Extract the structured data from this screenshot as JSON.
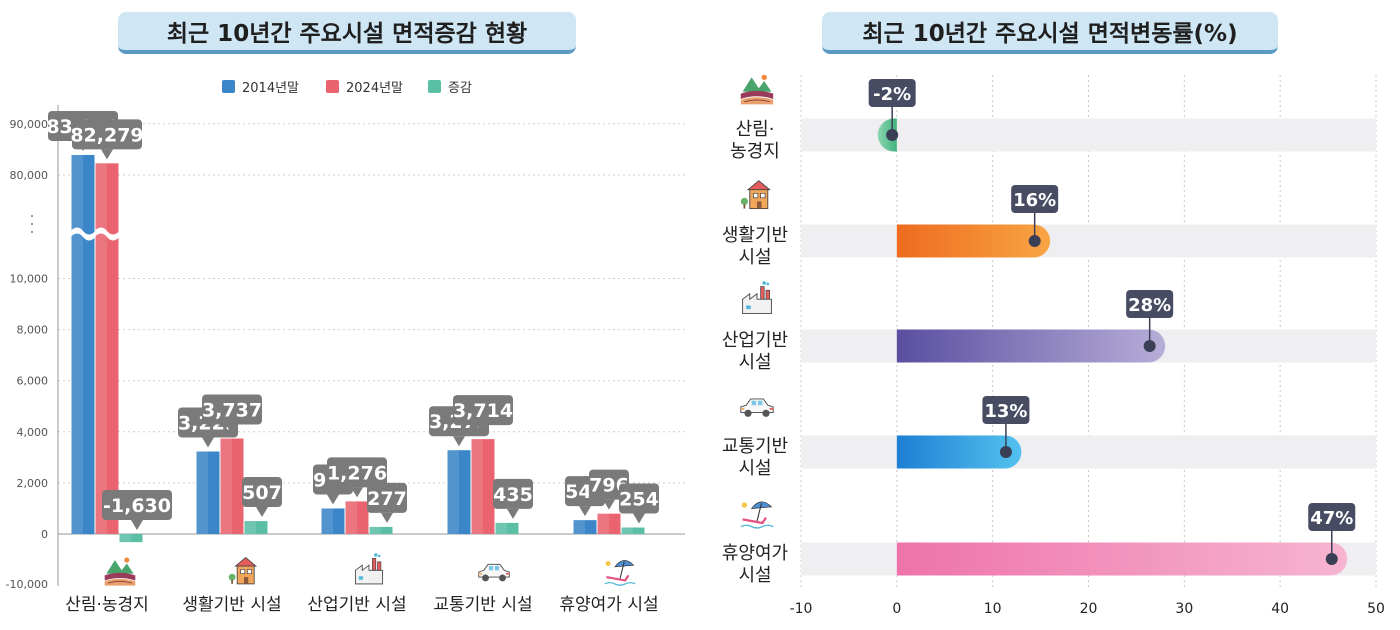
{
  "left": {
    "title": "최근 10년간 주요시설 면적증감 현황",
    "chart_data": {
      "type": "bar",
      "categories": [
        "산림·농경지",
        "생활기반 시설",
        "산업기반 시설",
        "교통기반 시설",
        "휴양여가 시설"
      ],
      "series": [
        {
          "name": "2014년말",
          "values": [
            83910,
            3229,
            999,
            3279,
            542
          ],
          "labels": [
            "83,910",
            "3,229",
            "999",
            "3,279",
            "542"
          ],
          "color": "#3a86c8"
        },
        {
          "name": "2024년말",
          "values": [
            82279,
            3737,
            1276,
            3714,
            796
          ],
          "labels": [
            "82,279",
            "3,737",
            "1,276",
            "3,714",
            "796"
          ],
          "color": "#e9646f"
        },
        {
          "name": "증감",
          "values": [
            -1630,
            507,
            277,
            435,
            254
          ],
          "labels": [
            "-1,630",
            "507",
            "277",
            "435",
            "254"
          ],
          "color": "#5bbfa5"
        }
      ],
      "y_ticks": [
        "90,000",
        "80,000",
        "10,000",
        "8,000",
        "6,000",
        "4,000",
        "2,000",
        "0",
        "-10,000"
      ],
      "y_break": "between 80,000 and 10,000",
      "legend_position": "top-center",
      "grid": true
    }
  },
  "right": {
    "title": "최근 10년간 주요시설 면적변동률(%)",
    "chart_data": {
      "type": "bar",
      "orientation": "horizontal",
      "categories": [
        "산림·\n농경지",
        "생활기반\n시설",
        "산업기반\n시설",
        "교통기반\n시설",
        "휴양여가\n시설"
      ],
      "values": [
        -2,
        16,
        28,
        13,
        47
      ],
      "labels": [
        "-2%",
        "16%",
        "28%",
        "13%",
        "47%"
      ],
      "x_ticks": [
        "-10",
        "0",
        "10",
        "20",
        "30",
        "40",
        "50"
      ],
      "xlim": [
        -10,
        50
      ],
      "colors": [
        [
          "#3fb27f",
          "#8fd6b0"
        ],
        [
          "#ee6b1f",
          "#f8a545"
        ],
        [
          "#5a4fa0",
          "#b7add8"
        ],
        [
          "#1e7fd4",
          "#53c2ee"
        ],
        [
          "#ee73a9",
          "#f6b5d1"
        ]
      ],
      "icons": [
        "forest-farm-icon",
        "house-icon",
        "factory-icon",
        "car-icon",
        "beach-umbrella-icon"
      ]
    }
  }
}
